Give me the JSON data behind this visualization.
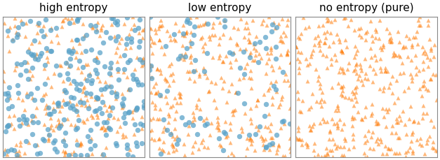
{
  "titles": [
    "high entropy",
    "low entropy",
    "no entropy (pure)"
  ],
  "n_orange": [
    250,
    350,
    400
  ],
  "n_blue": [
    250,
    80,
    0
  ],
  "orange_color": "#ff7f0e",
  "blue_color": "#5ba3c9",
  "marker_orange": "^",
  "marker_blue": "o",
  "alpha_orange": 0.55,
  "alpha_blue": 0.75,
  "marker_size_orange": 18,
  "marker_size_blue": 28,
  "seed": 123,
  "figsize": [
    6.27,
    2.3
  ],
  "dpi": 100,
  "xlim": [
    0,
    1
  ],
  "ylim": [
    0,
    1
  ],
  "title_fontsize": 11
}
